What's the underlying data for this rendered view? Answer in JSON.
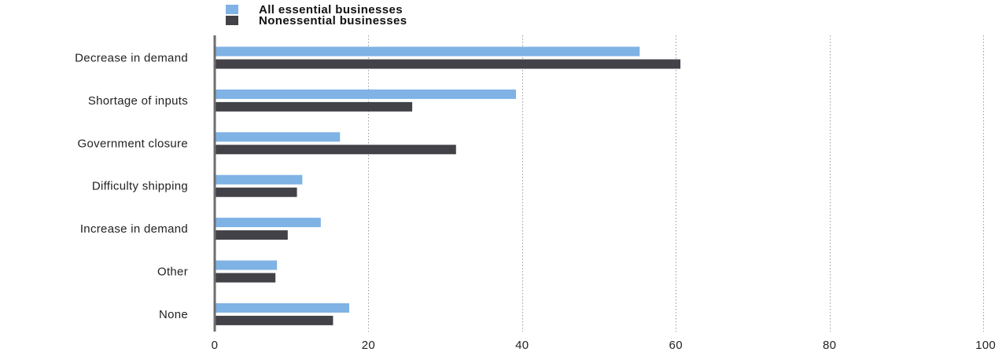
{
  "chart_data": {
    "type": "bar",
    "orientation": "horizontal",
    "categories": [
      "Decrease in demand",
      "Shortage of inputs",
      "Government closure",
      "Difficulty shipping",
      "Increase in demand",
      "Other",
      "None"
    ],
    "series": [
      {
        "name": "All essential businesses",
        "color": "#7fb2e5",
        "values": [
          55.3,
          39.2,
          16.3,
          11.4,
          13.8,
          8.1,
          17.5
        ]
      },
      {
        "name": "Nonessential businesses",
        "color": "#434248",
        "values": [
          60.6,
          25.7,
          31.4,
          10.7,
          9.5,
          7.9,
          15.4
        ]
      }
    ],
    "xlim": [
      0,
      100
    ],
    "xticks": [
      0,
      20,
      40,
      60,
      80,
      100
    ],
    "xlabel": "",
    "ylabel": "",
    "title": "",
    "grid": "vertical dotted",
    "legend_position": "top-left"
  }
}
